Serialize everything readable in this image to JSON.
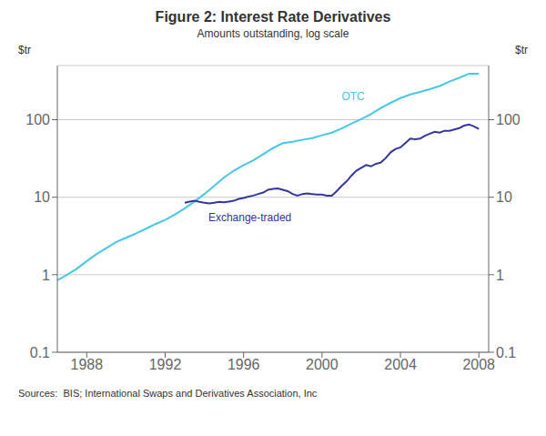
{
  "chart_data": {
    "type": "line",
    "title": "Figure 2: Interest Rate Derivatives",
    "subtitle": "Amounts outstanding, log scale",
    "source": "Sources:  BIS; International Swaps and Derivatives Association, Inc",
    "y_label": "$tr",
    "y2_label": "$tr",
    "log": "y",
    "grid": "y",
    "xlim": [
      1986.5,
      2008.5
    ],
    "xticks": [
      1988,
      1992,
      1996,
      2000,
      2004,
      2008
    ],
    "ylim": [
      0.1,
      500
    ],
    "yticks": [
      0.1,
      1,
      10,
      100
    ],
    "y2lim": [
      0.1,
      500
    ],
    "y2ticks": [
      0.1,
      1,
      10,
      100
    ],
    "series": [
      {
        "color": "#45C8E8",
        "x": [
          1986.5,
          1987.0,
          1987.5,
          1988.0,
          1988.5,
          1989.0,
          1989.5,
          1990.0,
          1990.5,
          1991.0,
          1991.5,
          1992.0,
          1992.5,
          1993.0,
          1993.5,
          1994.0,
          1994.5,
          1995.0,
          1995.5,
          1996.0,
          1996.5,
          1997.0,
          1997.5,
          1998.0,
          1998.5,
          1999.0,
          1999.5,
          2000.0,
          2000.5,
          2001.0,
          2001.5,
          2002.0,
          2002.5,
          2003.0,
          2003.5,
          2004.0,
          2004.5,
          2005.0,
          2005.5,
          2006.0,
          2006.5,
          2007.0,
          2007.5,
          2008.0
        ],
        "values": [
          0.85,
          1.0,
          1.2,
          1.5,
          1.85,
          2.2,
          2.65,
          3.0,
          3.4,
          3.9,
          4.5,
          5.1,
          6.0,
          7.2,
          8.8,
          11.0,
          14.0,
          18.0,
          22.0,
          26.0,
          30.0,
          36.0,
          43.0,
          50.0,
          52.0,
          55.0,
          58.0,
          63.0,
          68.0,
          77.0,
          89.0,
          102.0,
          118.0,
          142.0,
          165.0,
          190.0,
          212.0,
          228.0,
          248.0,
          272.0,
          310.0,
          347.0,
          393.0,
          393.0
        ]
      },
      {
        "color": "#3535A0",
        "x": [
          1993.0,
          1993.25,
          1993.5,
          1993.75,
          1994.0,
          1994.25,
          1994.5,
          1994.75,
          1995.0,
          1995.25,
          1995.5,
          1995.75,
          1996.0,
          1996.25,
          1996.5,
          1996.75,
          1997.0,
          1997.25,
          1997.5,
          1997.75,
          1998.0,
          1998.25,
          1998.5,
          1998.75,
          1999.0,
          1999.25,
          1999.5,
          1999.75,
          2000.0,
          2000.25,
          2000.5,
          2000.75,
          2001.0,
          2001.25,
          2001.5,
          2001.75,
          2002.0,
          2002.25,
          2002.5,
          2002.75,
          2003.0,
          2003.25,
          2003.5,
          2003.75,
          2004.0,
          2004.25,
          2004.5,
          2004.75,
          2005.0,
          2005.25,
          2005.5,
          2005.75,
          2006.0,
          2006.25,
          2006.5,
          2006.75,
          2007.0,
          2007.25,
          2007.5,
          2007.75,
          2008.0
        ],
        "values": [
          8.5,
          8.8,
          9.0,
          8.7,
          8.5,
          8.3,
          8.5,
          8.7,
          8.6,
          8.8,
          9.0,
          9.5,
          9.8,
          10.2,
          10.5,
          11.0,
          11.5,
          12.5,
          12.8,
          13.0,
          12.5,
          12.0,
          11.0,
          10.5,
          11.0,
          11.2,
          11.0,
          10.8,
          10.8,
          10.5,
          10.5,
          12.0,
          14.0,
          16.0,
          19.0,
          22.0,
          24.0,
          26.0,
          25.0,
          27.0,
          28.0,
          32.0,
          38.0,
          42.0,
          44.0,
          50.0,
          57.0,
          56.0,
          57.0,
          62.0,
          66.0,
          70.0,
          68.0,
          72.0,
          72.0,
          75.0,
          78.0,
          84.0,
          87.0,
          82.0,
          76.0
        ]
      }
    ],
    "annotations": [
      {
        "text": "OTC",
        "x": 2001.0,
        "y": 170,
        "color": "#45C8E8",
        "anchor": "bottom"
      },
      {
        "text": "Exchange-traded",
        "x": 1994.2,
        "y": 6.2,
        "color": "#3535A0",
        "anchor": "top"
      }
    ]
  }
}
